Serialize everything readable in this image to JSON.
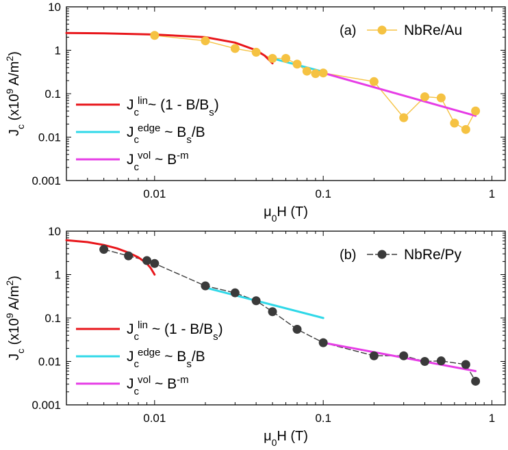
{
  "chart_data": [
    {
      "type": "line",
      "panel_label": "(a)",
      "xscale": "log",
      "yscale": "log",
      "xlim": [
        0.003,
        1.2
      ],
      "ylim": [
        0.001,
        10
      ],
      "x_ticks": [
        0.01,
        0.1,
        1
      ],
      "x_tick_labels": [
        "0.01",
        "0.1",
        "1"
      ],
      "y_ticks": [
        0.001,
        0.01,
        0.1,
        1,
        10
      ],
      "y_tick_labels": [
        "0.001",
        "0.01",
        "0.1",
        "1",
        "10"
      ],
      "xlabel": {
        "main": "μ",
        "sub": "0",
        "rest": "H (T)"
      },
      "ylabel": {
        "base": "J",
        "sub": "c",
        "rest": " (x10",
        "sup": "9",
        "rest2": " A/m",
        "sup2": "2",
        "end": ")"
      },
      "data_series": {
        "name": "NbRe/Au",
        "color": "#F5C242",
        "line_color": "#F5C242",
        "dashed": false,
        "x": [
          0.01,
          0.02,
          0.03,
          0.04,
          0.05,
          0.06,
          0.07,
          0.08,
          0.09,
          0.1,
          0.2,
          0.3,
          0.4,
          0.5,
          0.6,
          0.7,
          0.8
        ],
        "y": [
          2.2,
          1.65,
          1.1,
          0.9,
          0.65,
          0.65,
          0.48,
          0.33,
          0.29,
          0.3,
          0.19,
          0.028,
          0.085,
          0.08,
          0.021,
          0.015,
          0.04
        ]
      },
      "fits": [
        {
          "name": "lin",
          "color": "#E8161B",
          "x": [
            0.003,
            0.005,
            0.01,
            0.02,
            0.03,
            0.04,
            0.045,
            0.05
          ],
          "y": [
            2.5,
            2.46,
            2.3,
            2.0,
            1.5,
            1.0,
            0.75,
            0.5
          ]
        },
        {
          "name": "edge",
          "color": "#2FD8E8",
          "x": [
            0.05,
            0.1
          ],
          "y": [
            0.65,
            0.32
          ]
        },
        {
          "name": "vol",
          "color": "#E63CE6",
          "x": [
            0.1,
            0.8
          ],
          "y": [
            0.3,
            0.031
          ]
        }
      ],
      "legend": [
        {
          "key": "lin",
          "base": "J",
          "sub": "c",
          "sup": "lin",
          "rest": "~ (1 - B/B",
          "sub2": "s",
          "end": ")"
        },
        {
          "key": "edge",
          "base": "J",
          "sub": "c",
          "sup": "edge",
          "rest": " ~ B",
          "sub2": "s",
          "end": "/B"
        },
        {
          "key": "vol",
          "base": "J",
          "sub": "c",
          "sup": "vol",
          "rest": " ~ B",
          "sup2": "-m",
          "end": ""
        }
      ]
    },
    {
      "type": "line",
      "panel_label": "(b)",
      "xscale": "log",
      "yscale": "log",
      "xlim": [
        0.003,
        1.2
      ],
      "ylim": [
        0.001,
        10
      ],
      "x_ticks": [
        0.01,
        0.1,
        1
      ],
      "x_tick_labels": [
        "0.01",
        "0.1",
        "1"
      ],
      "y_ticks": [
        0.001,
        0.01,
        0.1,
        1,
        10
      ],
      "y_tick_labels": [
        "0.001",
        "0.01",
        "0.1",
        "1",
        "10"
      ],
      "xlabel": {
        "main": "μ",
        "sub": "0",
        "rest": "H (T)"
      },
      "ylabel": {
        "base": "J",
        "sub": "c",
        "rest": " (x10",
        "sup": "9",
        "rest2": " A/m",
        "sup2": "2",
        "end": ")"
      },
      "data_series": {
        "name": "NbRe/Py",
        "color": "#3A3A3A",
        "line_color": "#3A3A3A",
        "dashed": true,
        "x": [
          0.005,
          0.007,
          0.009,
          0.01,
          0.02,
          0.03,
          0.04,
          0.05,
          0.07,
          0.1,
          0.2,
          0.3,
          0.4,
          0.5,
          0.7,
          0.8
        ],
        "y": [
          3.8,
          2.7,
          2.1,
          1.8,
          0.55,
          0.38,
          0.25,
          0.14,
          0.055,
          0.027,
          0.0135,
          0.0135,
          0.01,
          0.0103,
          0.0085,
          0.0035
        ]
      },
      "fits": [
        {
          "name": "lin",
          "color": "#E8161B",
          "x": [
            0.003,
            0.004,
            0.005,
            0.006,
            0.007,
            0.008,
            0.009,
            0.0095,
            0.01
          ],
          "y": [
            6.2,
            5.6,
            4.8,
            4.0,
            3.2,
            2.5,
            1.8,
            1.4,
            1.0
          ]
        },
        {
          "name": "edge",
          "color": "#2FD8E8",
          "x": [
            0.02,
            0.1
          ],
          "y": [
            0.5,
            0.1
          ]
        },
        {
          "name": "vol",
          "color": "#E63CE6",
          "x": [
            0.1,
            0.8
          ],
          "y": [
            0.027,
            0.006
          ]
        }
      ],
      "legend": [
        {
          "key": "lin",
          "base": "J",
          "sub": "c",
          "sup": "lin",
          "rest": " ~ (1 - B/B",
          "sub2": "s",
          "end": ")"
        },
        {
          "key": "edge",
          "base": "J",
          "sub": "c",
          "sup": "edge",
          "rest": " ~ B",
          "sub2": "s",
          "end": "/B"
        },
        {
          "key": "vol",
          "base": "J",
          "sub": "c",
          "sup": "vol",
          "rest": " ~ B",
          "sup2": "-m",
          "end": ""
        }
      ]
    }
  ]
}
